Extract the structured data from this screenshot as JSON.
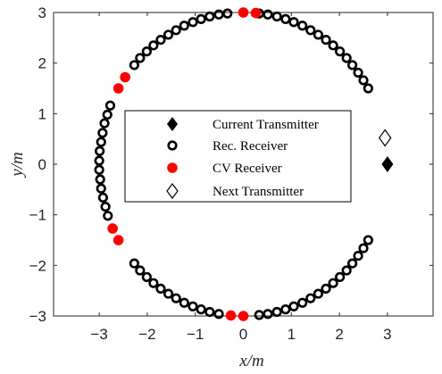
{
  "chart_data": {
    "type": "scatter",
    "title": "",
    "xlabel": "x/m",
    "ylabel": "y/m",
    "xlim": [
      -3.95,
      3.95
    ],
    "ylim": [
      -3,
      3
    ],
    "xticks": [
      -3,
      -2,
      -1,
      0,
      1,
      2,
      3
    ],
    "yticks": [
      -3,
      -2,
      -1,
      0,
      1,
      2,
      3
    ],
    "legend_position": "center",
    "colors": {
      "receiver": "#000000",
      "cv": "#ff0000",
      "transmitter": "#000000"
    },
    "series": [
      {
        "name": "Current Transmitter",
        "marker": "diamond-filled",
        "points": [
          [
            3.0,
            0.0
          ]
        ]
      },
      {
        "name": "Rec. Receiver",
        "marker": "circle-open",
        "points": [
          [
            2.6,
            1.5
          ],
          [
            2.5,
            1.66
          ],
          [
            2.39,
            1.81
          ],
          [
            2.27,
            1.96
          ],
          [
            2.15,
            2.1
          ],
          [
            2.01,
            2.23
          ],
          [
            1.87,
            2.35
          ],
          [
            1.72,
            2.46
          ],
          [
            1.56,
            2.56
          ],
          [
            1.4,
            2.65
          ],
          [
            1.23,
            2.74
          ],
          [
            1.05,
            2.81
          ],
          [
            0.88,
            2.87
          ],
          [
            0.7,
            2.92
          ],
          [
            0.51,
            2.96
          ],
          [
            0.33,
            2.98
          ],
          [
            -0.33,
            2.98
          ],
          [
            -0.51,
            2.96
          ],
          [
            -0.7,
            2.92
          ],
          [
            -0.88,
            2.87
          ],
          [
            -1.05,
            2.81
          ],
          [
            -1.23,
            2.74
          ],
          [
            -1.4,
            2.65
          ],
          [
            -1.56,
            2.56
          ],
          [
            -1.72,
            2.46
          ],
          [
            -1.87,
            2.35
          ],
          [
            -2.01,
            2.23
          ],
          [
            -2.15,
            2.1
          ],
          [
            -2.27,
            1.96
          ],
          [
            -2.77,
            1.16
          ],
          [
            -2.83,
            0.98
          ],
          [
            -2.89,
            0.81
          ],
          [
            -2.93,
            0.62
          ],
          [
            -2.96,
            0.44
          ],
          [
            -2.99,
            0.26
          ],
          [
            -3.0,
            0.07
          ],
          [
            -3.0,
            -0.11
          ],
          [
            -2.98,
            -0.3
          ],
          [
            -2.96,
            -0.48
          ],
          [
            -2.92,
            -0.66
          ],
          [
            -2.87,
            -0.84
          ],
          [
            -2.82,
            -1.02
          ],
          [
            -2.27,
            -1.96
          ],
          [
            -2.15,
            -2.1
          ],
          [
            -2.01,
            -2.23
          ],
          [
            -1.87,
            -2.35
          ],
          [
            -1.72,
            -2.46
          ],
          [
            -1.56,
            -2.56
          ],
          [
            -1.4,
            -2.65
          ],
          [
            -1.23,
            -2.74
          ],
          [
            -1.05,
            -2.81
          ],
          [
            -0.88,
            -2.87
          ],
          [
            -0.7,
            -2.92
          ],
          [
            -0.51,
            -2.96
          ],
          [
            0.33,
            -2.98
          ],
          [
            0.51,
            -2.96
          ],
          [
            0.7,
            -2.92
          ],
          [
            0.88,
            -2.87
          ],
          [
            1.05,
            -2.81
          ],
          [
            1.23,
            -2.74
          ],
          [
            1.4,
            -2.65
          ],
          [
            1.56,
            -2.56
          ],
          [
            1.72,
            -2.46
          ],
          [
            1.87,
            -2.35
          ],
          [
            2.01,
            -2.23
          ],
          [
            2.15,
            -2.1
          ],
          [
            2.27,
            -1.96
          ],
          [
            2.39,
            -1.81
          ],
          [
            2.5,
            -1.66
          ],
          [
            2.6,
            -1.5
          ]
        ]
      },
      {
        "name": "CV Receiver",
        "marker": "circle-filled",
        "points": [
          [
            0.0,
            3.0
          ],
          [
            0.26,
            2.99
          ],
          [
            -2.46,
            1.72
          ],
          [
            -2.6,
            1.5
          ],
          [
            -2.72,
            -1.27
          ],
          [
            -2.6,
            -1.5
          ],
          [
            -0.26,
            -2.99
          ],
          [
            0.0,
            -3.0
          ]
        ]
      },
      {
        "name": "Next Transmitter",
        "marker": "diamond-open",
        "points": [
          [
            2.95,
            0.52
          ]
        ]
      }
    ]
  }
}
